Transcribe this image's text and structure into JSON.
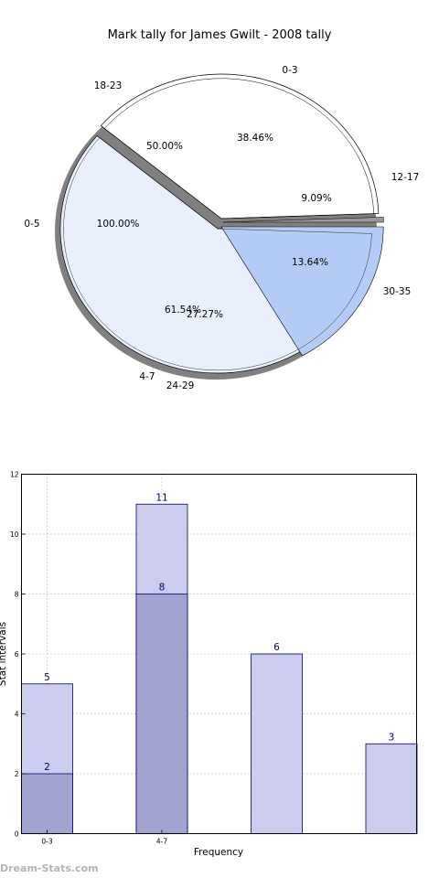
{
  "page": {
    "title": "Mark tally for James Gwilt - 2008 tally",
    "watermark": "Dream-Stats.com"
  },
  "chart_data": [
    {
      "type": "pie",
      "title": "Mark tally for James Gwilt - 2008 tally",
      "rings": [
        {
          "name": "outer",
          "slices": [
            {
              "label": "0-3",
              "percent_label": "38.46%",
              "value": 38.46,
              "color": "#ffffff"
            },
            {
              "label": "12-17",
              "percent_label": "",
              "value": 0.0,
              "color": "#ffffff"
            },
            {
              "label": "24-29",
              "percent_label": "",
              "value": 0.0,
              "color": "#ffffff"
            },
            {
              "label": "4-7",
              "percent_label": "61.54%",
              "value": 61.54,
              "color": "#eaf0fb"
            }
          ]
        },
        {
          "name": "inner",
          "slices": [
            {
              "label": "",
              "percent_label": "9.09%",
              "value": 9.09,
              "color": "#ffffff"
            },
            {
              "label": "30-35",
              "percent_label": "13.64%",
              "value": 13.64,
              "color": "#b4ccf5"
            },
            {
              "label": "",
              "percent_label": "27.27%",
              "value": 27.27,
              "color": "#eaf0fb"
            },
            {
              "label": "",
              "percent_label": "50.00%",
              "value": 50.0,
              "color": "#ffffff"
            }
          ]
        },
        {
          "name": "small",
          "slices": [
            {
              "label": "18-23",
              "percent_label": "50.00%",
              "value": 50.0
            },
            {
              "label": "0-5",
              "percent_label": "100.00%",
              "value": 100.0
            }
          ]
        }
      ],
      "outer_labels": [
        "18-23",
        "0-3",
        "12-17",
        "0-5",
        "30-35",
        "4-7",
        "24-29"
      ],
      "percent_labels": [
        "50.00%",
        "38.46%",
        "9.09%",
        "100.00%",
        "13.64%",
        "61.54%",
        "27.27%"
      ]
    },
    {
      "type": "bar",
      "xlabel": "Frequency",
      "ylabel": "Stat intervals",
      "ylim": [
        0,
        12
      ],
      "yticks": [
        0,
        2,
        4,
        6,
        8,
        10,
        12
      ],
      "grid": true,
      "categories": [
        "0-3",
        "4-7",
        "",
        ""
      ],
      "series": [
        {
          "values": [
            5,
            11,
            6,
            3
          ],
          "color": "#ccccee"
        },
        {
          "values": [
            2,
            8,
            null,
            null
          ],
          "color": "#a3a3d0"
        }
      ],
      "value_labels": [
        [
          "5",
          "2"
        ],
        [
          "11",
          "8"
        ],
        [
          "6"
        ],
        [
          "3"
        ]
      ]
    }
  ]
}
